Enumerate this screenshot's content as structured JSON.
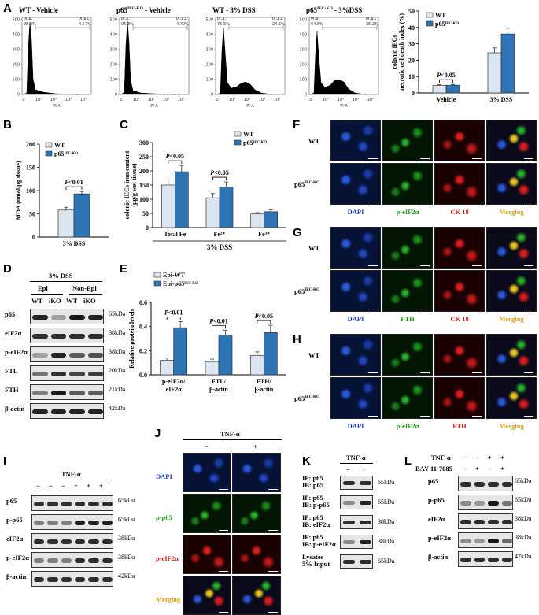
{
  "colors": {
    "wt": "#dce6f2",
    "ko": "#2e75b6",
    "dapi": "#1f3fbf",
    "green": "#1a9e1a",
    "red": "#d61c1c",
    "orange": "#d4a017"
  },
  "panel_letters": {
    "A": "A",
    "B": "B",
    "C": "C",
    "D": "D",
    "E": "E",
    "F": "F",
    "G": "G",
    "H": "H",
    "I": "I",
    "J": "J",
    "K": "K",
    "L": "L"
  },
  "flow": {
    "titles": [
      "WT - Vehicle",
      "p65IEC-KO - Vehicle",
      "WT - 3% DSS",
      "p65IEC-KO - 3%DSS"
    ],
    "gate_left": "PI-A-",
    "gate_right": "PI-A+",
    "pcts_left": [
      "95.4%",
      "95.3%",
      "75.5%",
      "64.8%"
    ],
    "pcts_right": [
      "4.57%",
      "4.70%",
      "24.5%",
      "35.2%"
    ],
    "xaxis_label": "PI-A",
    "xticks": [
      "0",
      "10²",
      "10³",
      "10⁴",
      "10⁵"
    ]
  },
  "chart_data": [
    {
      "id": "A",
      "type": "bar",
      "ylabel": "colonic IECs necrotic cell death index (%)",
      "categories": [
        "Vehicle",
        "3% DSS"
      ],
      "series": [
        {
          "name": "WT",
          "values": [
            4.5,
            24.5
          ],
          "err": [
            0.5,
            3
          ]
        },
        {
          "name": "p65IEC-KO",
          "values": [
            4.7,
            36
          ],
          "err": [
            0.5,
            3.5
          ]
        }
      ],
      "ylim": [
        0,
        50
      ],
      "yticks": [
        "0",
        "10",
        "20",
        "30",
        "40",
        "50"
      ],
      "annotation": "P<0.05",
      "legend": [
        "WT",
        "p65IEC-KO"
      ]
    },
    {
      "id": "B",
      "type": "bar",
      "ylabel": "MDA (nmol/μg tissue)",
      "categories": [
        "3% DSS"
      ],
      "series": [
        {
          "name": "WT",
          "values": [
            58
          ],
          "err": [
            6
          ]
        },
        {
          "name": "p65IEC-KO",
          "values": [
            93
          ],
          "err": [
            5
          ]
        }
      ],
      "ylim": [
        0,
        200
      ],
      "yticks": [
        "0",
        "50",
        "100",
        "150",
        "200"
      ],
      "annotation": "P<0.01",
      "legend": [
        "WT",
        "p65IEC-KO"
      ]
    },
    {
      "id": "C",
      "type": "bar",
      "ylabel": "colonic IECs iron content (μg/g wet tissue)",
      "categories": [
        "Total Fe",
        "Fe²⁺",
        "Fe³⁺"
      ],
      "series": [
        {
          "name": "WT",
          "values": [
            150,
            105,
            48
          ],
          "err": [
            18,
            15,
            5
          ]
        },
        {
          "name": "p65IEC-KO",
          "values": [
            197,
            143,
            56
          ],
          "err": [
            22,
            18,
            7
          ]
        }
      ],
      "ylim": [
        0,
        300
      ],
      "yticks": [
        "0",
        "50",
        "100",
        "150",
        "200",
        "250",
        "300"
      ],
      "annotations": [
        "P<0.05",
        "P<0.05"
      ],
      "xgroup": "3% DSS",
      "legend": [
        "WT",
        "p65IEC-KO"
      ]
    },
    {
      "id": "E",
      "type": "bar",
      "ylabel": "Relative protein levels",
      "categories": [
        "p-eIF2α/ eIF2α",
        "FTL/ β-actin",
        "FTH/ β-actin"
      ],
      "series": [
        {
          "name": "Epi-WT",
          "values": [
            0.12,
            0.11,
            0.16
          ],
          "err": [
            0.02,
            0.02,
            0.03
          ]
        },
        {
          "name": "Epi-p65IEC-KO",
          "values": [
            0.39,
            0.33,
            0.35
          ],
          "err": [
            0.05,
            0.04,
            0.06
          ]
        }
      ],
      "ylim": [
        0,
        0.6
      ],
      "yticks": [
        "0.0",
        "0.2",
        "0.4",
        "0.6"
      ],
      "annotations": [
        "P<0.01",
        "P<0.01",
        "P<0.05"
      ],
      "legend": [
        "Epi-WT",
        "Epi-p65IEC-KO"
      ]
    }
  ],
  "blot_D": {
    "header": "3% DSS",
    "groups": [
      "Epi",
      "Non-Epi"
    ],
    "lanes": [
      "WT",
      "iKO",
      "WT",
      "iKO"
    ],
    "rows": [
      {
        "name": "p65",
        "kda": "65kDa"
      },
      {
        "name": "eIF2α",
        "kda": "38kDa"
      },
      {
        "name": "p-eIF2α",
        "kda": "38kDa"
      },
      {
        "name": "FTL",
        "kda": "20kDa"
      },
      {
        "name": "FTH",
        "kda": "21kDa"
      },
      {
        "name": "β-actin",
        "kda": "42kDa"
      }
    ]
  },
  "blot_I": {
    "header": "TNF-α",
    "signs": [
      "−",
      "−",
      "−",
      "+",
      "+",
      "+"
    ],
    "rows": [
      {
        "name": "p65",
        "kda": "65kDa"
      },
      {
        "name": "p-p65",
        "kda": "65kDa"
      },
      {
        "name": "eIF2α",
        "kda": "38kDa"
      },
      {
        "name": "p-eIF2α",
        "kda": "38kDa"
      },
      {
        "name": "β-actin",
        "kda": "42kDa"
      }
    ]
  },
  "blot_K": {
    "header": "TNF-α",
    "signs": [
      "−",
      "+"
    ],
    "rows": [
      {
        "ip": "IP: p65",
        "ib": "IB: p65",
        "kda": "65kDa"
      },
      {
        "ip": "IP: p65",
        "ib": "IB: p-p65",
        "kda": "65kDa"
      },
      {
        "ip": "IP: p65",
        "ib": "IB: eIF2α",
        "kda": "38kDa"
      },
      {
        "ip": "IP: p65",
        "ib": "IB: p-eIF2α",
        "kda": "38kDa"
      },
      {
        "ip": "Lysates",
        "ib": "5% Input",
        "kda": "65kDa"
      }
    ]
  },
  "blot_L": {
    "treatments": [
      {
        "name": "TNF-α",
        "signs": [
          "−",
          "−",
          "+",
          "+"
        ]
      },
      {
        "name": "BAY 11-7085",
        "signs": [
          "−",
          "+",
          "−",
          "+"
        ]
      }
    ],
    "rows": [
      {
        "name": "p65",
        "kda": "65kDa"
      },
      {
        "name": "p-p65",
        "kda": "65kDa"
      },
      {
        "name": "eIF2α",
        "kda": "38kDa"
      },
      {
        "name": "p-eIF2α",
        "kda": "38kDa"
      },
      {
        "name": "β-actin",
        "kda": "42kDa"
      }
    ]
  },
  "micro_FGH": {
    "row_labels": [
      "WT",
      "p65IEC-KO"
    ],
    "scale": "50 μm",
    "F_cols": [
      "DAPI",
      "p-eIF2α",
      "CK 18",
      "Merging"
    ],
    "G_cols": [
      "DAPI",
      "FTH",
      "CK 18",
      "Merging"
    ],
    "H_cols": [
      "DAPI",
      "p-eIF2α",
      "FTH",
      "Merging"
    ]
  },
  "micro_J": {
    "header": "TNF-α",
    "signs": [
      "−",
      "+"
    ],
    "rows": [
      "DAPI",
      "p-p65",
      "p-eIF2α",
      "Merging"
    ],
    "scale": "20 μm"
  }
}
